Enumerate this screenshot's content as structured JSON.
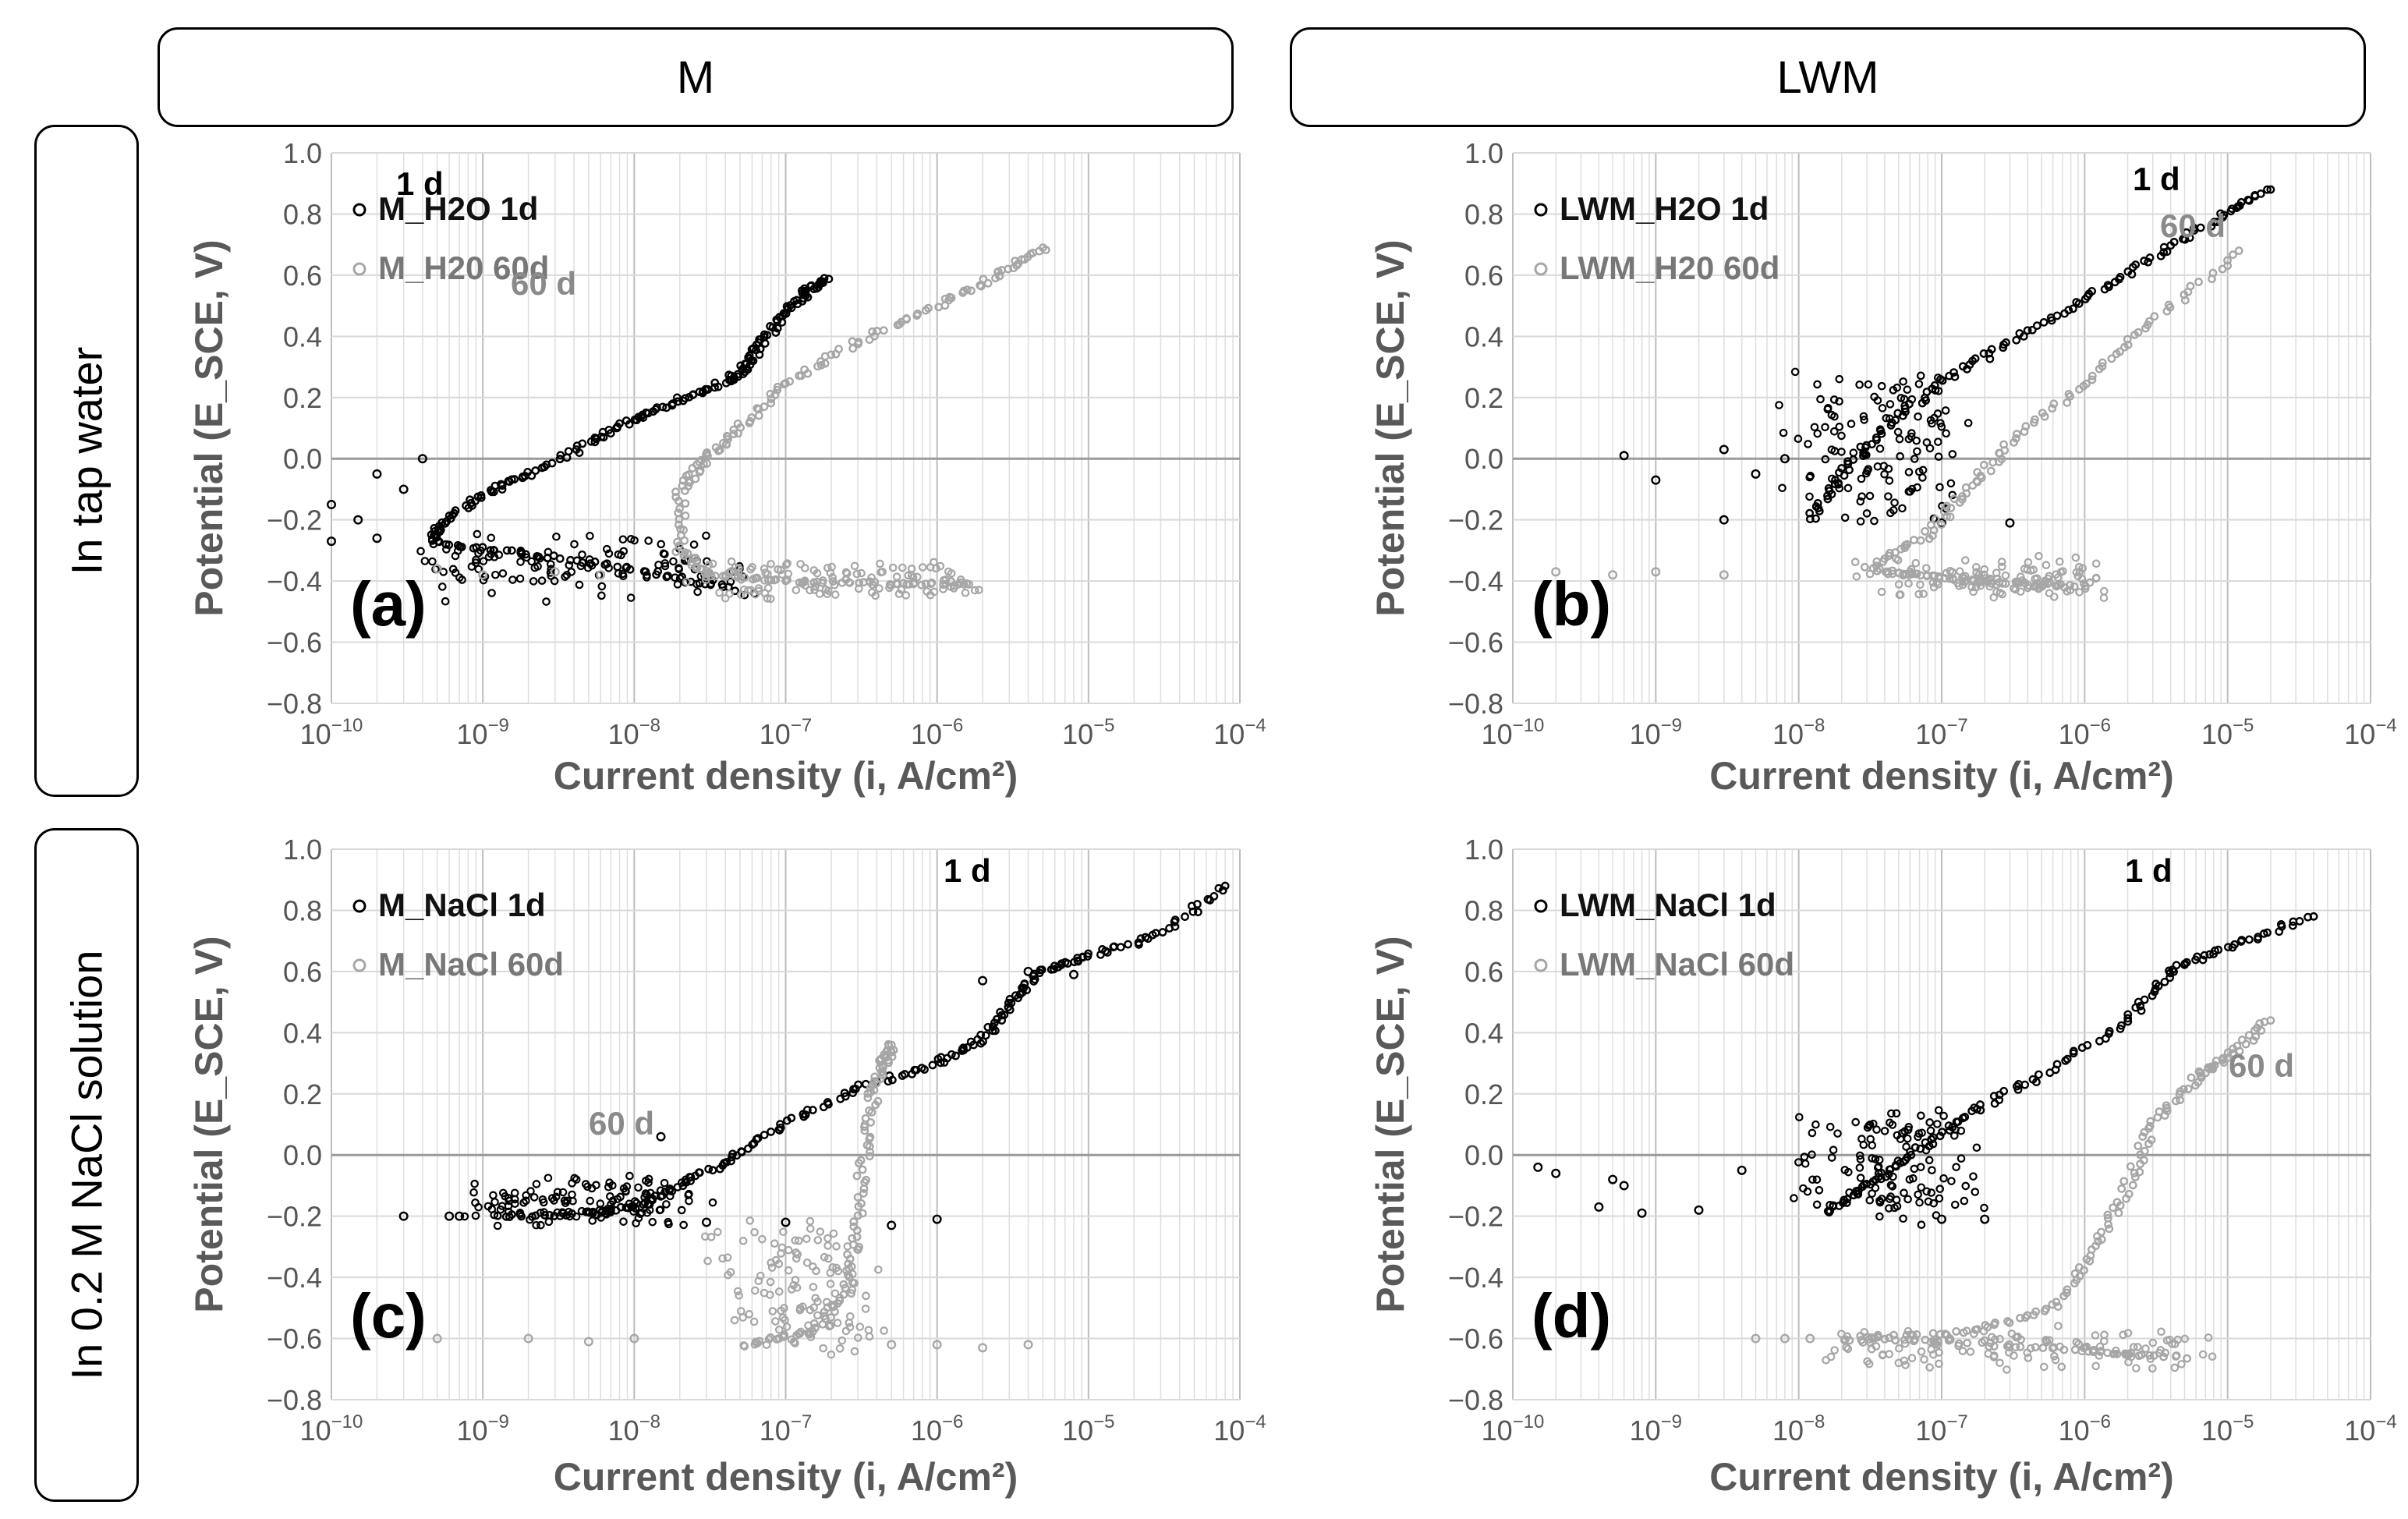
{
  "columns": [
    "M",
    "LWM"
  ],
  "rows": [
    "In tap water",
    "In 0.2 M NaCl solution"
  ],
  "chart_data": [
    {
      "type": "scatter",
      "panel_label": "(a)",
      "xlabel": "Current density (i, A/cm²)",
      "ylabel": "Potential (E_SCE, V)",
      "xscale": "log",
      "xlim": [
        1e-10,
        0.0001
      ],
      "ylim": [
        -0.8,
        1.0
      ],
      "x_tick_exponents": [
        -10,
        -9,
        -8,
        -7,
        -6,
        -5,
        -4
      ],
      "y_ticks": [
        "1.0",
        "0.8",
        "0.6",
        "0.4",
        "0.2",
        "0.0",
        "-0.2",
        "-0.4",
        "-0.6",
        "-0.8"
      ],
      "grid": true,
      "legend": "top-left",
      "series": [
        {
          "name": "M_H2O 1d",
          "color": "#000000",
          "annotation": "1 d",
          "curve": [
            [
              4.5e-08,
              -0.43
            ],
            [
              1e-08,
              -0.36
            ],
            [
              2e-09,
              -0.31
            ],
            [
              5e-10,
              -0.28
            ],
            [
              5e-10,
              -0.22
            ],
            [
              1e-09,
              -0.12
            ],
            [
              2e-09,
              -0.05
            ],
            [
              5e-09,
              0.05
            ],
            [
              1e-08,
              0.13
            ],
            [
              2e-08,
              0.19
            ],
            [
              4e-08,
              0.25
            ],
            [
              5.5e-08,
              0.3
            ],
            [
              7e-08,
              0.38
            ],
            [
              1e-07,
              0.48
            ],
            [
              1.4e-07,
              0.55
            ],
            [
              1.8e-07,
              0.59
            ]
          ],
          "scatter": [
            [
              1e-10,
              -0.15
            ],
            [
              1.5e-10,
              -0.2
            ],
            [
              2e-10,
              -0.05
            ],
            [
              3e-10,
              -0.1
            ],
            [
              1e-10,
              -0.27
            ],
            [
              2e-10,
              -0.26
            ],
            [
              4e-10,
              0.0
            ]
          ]
        },
        {
          "name": "M_H20 60d",
          "color": "#a6a6a6",
          "annotation": "60 d",
          "curve": [
            [
              1.7e-06,
              -0.41
            ],
            [
              5e-07,
              -0.41
            ],
            [
              1e-07,
              -0.4
            ],
            [
              3e-08,
              -0.38
            ],
            [
              2e-08,
              -0.3
            ],
            [
              2e-08,
              -0.1
            ],
            [
              3e-08,
              0.0
            ],
            [
              5e-08,
              0.1
            ],
            [
              1e-07,
              0.25
            ],
            [
              3e-07,
              0.38
            ],
            [
              1e-06,
              0.5
            ],
            [
              2.5e-06,
              0.6
            ],
            [
              5e-06,
              0.69
            ]
          ],
          "scatter": [
            [
              5e-10,
              -0.36
            ],
            [
              1e-09,
              -0.38
            ],
            [
              3e-09,
              -0.37
            ],
            [
              6e-09,
              -0.38
            ]
          ]
        }
      ]
    },
    {
      "type": "scatter",
      "panel_label": "(b)",
      "xlabel": "Current density (i, A/cm²)",
      "ylabel": "Potential (E_SCE, V)",
      "xscale": "log",
      "xlim": [
        1e-10,
        0.0001
      ],
      "ylim": [
        -0.8,
        1.0
      ],
      "x_tick_exponents": [
        -10,
        -9,
        -8,
        -7,
        -6,
        -5,
        -4
      ],
      "y_ticks": [
        "1.0",
        "0.8",
        "0.6",
        "0.4",
        "0.2",
        "0.0",
        "-0.2",
        "-0.4",
        "-0.6",
        "-0.8"
      ],
      "grid": true,
      "legend": "top-left",
      "series": [
        {
          "name": "LWM_H2O 1d",
          "color": "#000000",
          "annotation": "1 d",
          "curve": [
            [
              1.2e-08,
              -0.2
            ],
            [
              2e-08,
              -0.05
            ],
            [
              4e-08,
              0.1
            ],
            [
              1e-07,
              0.25
            ],
            [
              3e-07,
              0.38
            ],
            [
              1e-06,
              0.52
            ],
            [
              3e-06,
              0.66
            ],
            [
              8e-06,
              0.78
            ],
            [
              2e-05,
              0.88
            ]
          ],
          "scatter": [
            [
              6e-10,
              0.01
            ],
            [
              1e-09,
              -0.07
            ],
            [
              3e-09,
              0.03
            ],
            [
              5e-09,
              -0.05
            ],
            [
              8e-09,
              0.0
            ],
            [
              3e-09,
              -0.2
            ],
            [
              1e-07,
              -0.21
            ],
            [
              3e-07,
              -0.21
            ]
          ]
        },
        {
          "name": "LWM_H20 60d",
          "color": "#a6a6a6",
          "annotation": "60 d",
          "curve": [
            [
              1e-06,
              -0.42
            ],
            [
              3e-07,
              -0.41
            ],
            [
              1e-07,
              -0.39
            ],
            [
              3e-08,
              -0.36
            ],
            [
              8e-08,
              -0.25
            ],
            [
              1.5e-07,
              -0.1
            ],
            [
              3e-07,
              0.05
            ],
            [
              1e-06,
              0.25
            ],
            [
              3e-06,
              0.45
            ],
            [
              1.2e-05,
              0.68
            ]
          ],
          "scatter": [
            [
              2e-10,
              -0.37
            ],
            [
              5e-10,
              -0.38
            ],
            [
              1e-09,
              -0.37
            ],
            [
              3e-09,
              -0.38
            ]
          ]
        }
      ]
    },
    {
      "type": "scatter",
      "panel_label": "(c)",
      "xlabel": "Current density (i, A/cm²)",
      "ylabel": "Potential (E_SCE, V)",
      "xscale": "log",
      "xlim": [
        1e-10,
        0.0001
      ],
      "ylim": [
        -0.8,
        1.0
      ],
      "x_tick_exponents": [
        -10,
        -9,
        -8,
        -7,
        -6,
        -5,
        -4
      ],
      "y_ticks": [
        "1.0",
        "0.8",
        "0.6",
        "0.4",
        "0.2",
        "0.0",
        "-0.2",
        "-0.4",
        "-0.6",
        "-0.8"
      ],
      "grid": true,
      "legend": "top-left",
      "series": [
        {
          "name": "M_NaCl 1d",
          "color": "#000000",
          "annotation": "1 d",
          "curve": [
            [
              1.2e-09,
              -0.2
            ],
            [
              5e-09,
              -0.19
            ],
            [
              1e-08,
              -0.17
            ],
            [
              2e-08,
              -0.1
            ],
            [
              4e-08,
              -0.02
            ],
            [
              1e-07,
              0.1
            ],
            [
              3e-07,
              0.22
            ],
            [
              1e-06,
              0.3
            ],
            [
              2e-06,
              0.38
            ],
            [
              3e-06,
              0.5
            ],
            [
              5e-06,
              0.6
            ],
            [
              1e-05,
              0.65
            ],
            [
              3e-05,
              0.72
            ],
            [
              8e-05,
              0.88
            ]
          ],
          "scatter": [
            [
              3e-10,
              -0.2
            ],
            [
              6e-10,
              -0.2
            ],
            [
              7e-10,
              -0.2
            ],
            [
              5e-07,
              -0.23
            ],
            [
              1e-06,
              -0.21
            ],
            [
              2e-06,
              0.57
            ],
            [
              4e-06,
              0.6
            ],
            [
              8e-06,
              0.59
            ],
            [
              1.5e-08,
              0.06
            ],
            [
              3e-08,
              -0.22
            ],
            [
              1e-07,
              -0.22
            ]
          ]
        },
        {
          "name": "M_NaCl 60d",
          "color": "#a6a6a6",
          "annotation": "60 d",
          "curve": [
            [
              5e-08,
              -0.62
            ],
            [
              1.5e-07,
              -0.58
            ],
            [
              2.5e-07,
              -0.45
            ],
            [
              3e-07,
              -0.25
            ],
            [
              3.3e-07,
              0.0
            ],
            [
              3.8e-07,
              0.2
            ],
            [
              4.5e-07,
              0.3
            ],
            [
              5e-07,
              0.36
            ]
          ],
          "scatter": [
            [
              5e-10,
              -0.6
            ],
            [
              2e-09,
              -0.6
            ],
            [
              5e-09,
              -0.61
            ],
            [
              1e-08,
              -0.6
            ],
            [
              5e-07,
              -0.62
            ],
            [
              1e-06,
              -0.62
            ],
            [
              2e-06,
              -0.63
            ],
            [
              4e-06,
              -0.62
            ]
          ]
        }
      ]
    },
    {
      "type": "scatter",
      "panel_label": "(d)",
      "xlabel": "Current density (i, A/cm²)",
      "ylabel": "Potential (E_SCE, V)",
      "xscale": "log",
      "xlim": [
        1e-10,
        0.0001
      ],
      "ylim": [
        -0.8,
        1.0
      ],
      "x_tick_exponents": [
        -10,
        -9,
        -8,
        -7,
        -6,
        -5,
        -4
      ],
      "y_ticks": [
        "1.0",
        "0.8",
        "0.6",
        "0.4",
        "0.2",
        "0.0",
        "-0.2",
        "-0.4",
        "-0.6",
        "-0.8"
      ],
      "grid": true,
      "legend": "top-left",
      "series": [
        {
          "name": "LWM_NaCl 1d",
          "color": "#000000",
          "annotation": "1 d",
          "curve": [
            [
              1.5e-08,
              -0.19
            ],
            [
              3e-08,
              -0.1
            ],
            [
              6e-08,
              0.0
            ],
            [
              1.5e-07,
              0.13
            ],
            [
              5e-07,
              0.26
            ],
            [
              2e-06,
              0.44
            ],
            [
              4e-06,
              0.6
            ],
            [
              1e-05,
              0.68
            ],
            [
              4e-05,
              0.78
            ]
          ],
          "scatter": [
            [
              1.5e-10,
              -0.04
            ],
            [
              2e-10,
              -0.06
            ],
            [
              4e-10,
              -0.17
            ],
            [
              5e-10,
              -0.08
            ],
            [
              6e-10,
              -0.1
            ],
            [
              8e-10,
              -0.19
            ],
            [
              2e-09,
              -0.18
            ],
            [
              4e-09,
              -0.05
            ],
            [
              1e-07,
              -0.21
            ],
            [
              2e-07,
              -0.21
            ]
          ]
        },
        {
          "name": "LWM_NaCl 60d",
          "color": "#a6a6a6",
          "annotation": "60 d",
          "curve": [
            [
              5e-06,
              -0.66
            ],
            [
              1e-06,
              -0.64
            ],
            [
              1e-07,
              -0.61
            ],
            [
              2e-08,
              -0.6
            ],
            [
              1.5e-07,
              -0.58
            ],
            [
              6e-07,
              -0.5
            ],
            [
              1.2e-06,
              -0.3
            ],
            [
              2e-06,
              -0.1
            ],
            [
              3e-06,
              0.1
            ],
            [
              6e-06,
              0.25
            ],
            [
              1e-05,
              0.32
            ],
            [
              2e-05,
              0.44
            ]
          ],
          "scatter": [
            [
              5e-09,
              -0.6
            ],
            [
              8e-09,
              -0.6
            ],
            [
              1.2e-08,
              -0.6
            ]
          ]
        }
      ]
    }
  ]
}
